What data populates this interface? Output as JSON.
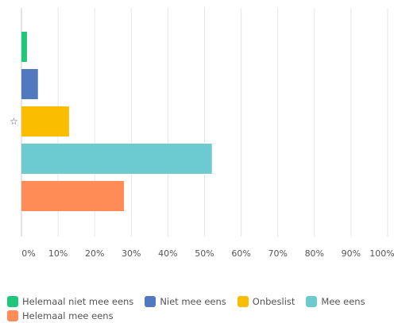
{
  "chart_data": {
    "type": "bar",
    "orientation": "horizontal",
    "categories": [
      "Helemaal niet mee eens",
      "Niet mee eens",
      "Onbeslist",
      "Mee eens",
      "Helemaal mee eens"
    ],
    "values": [
      1.5,
      4.5,
      13,
      52,
      28
    ],
    "colors": [
      "#1fc77a",
      "#5079bf",
      "#fbbd00",
      "#6ccbd0",
      "#ff8c56"
    ],
    "xlim": [
      0,
      100
    ],
    "xticks": [
      "0%",
      "10%",
      "20%",
      "30%",
      "40%",
      "50%",
      "60%",
      "70%",
      "80%",
      "90%",
      "100%"
    ],
    "grid": true,
    "legend_position": "bottom",
    "star_marker": "☆",
    "star_category_index": 2
  }
}
